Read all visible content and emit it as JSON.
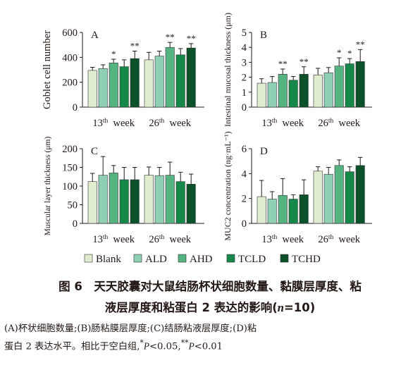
{
  "legend": {
    "items": [
      {
        "label": "Blank",
        "color": "#dfeccd"
      },
      {
        "label": "ALD",
        "color": "#8fcfb3"
      },
      {
        "label": "AHD",
        "color": "#55b37f"
      },
      {
        "label": "TCLD",
        "color": "#16884a"
      },
      {
        "label": "TCHD",
        "color": "#0c5228"
      }
    ]
  },
  "caption": {
    "title_line1": "图 6　天天胶囊对大鼠结肠杯状细胞数量、黏膜层厚度、粘",
    "title_line2_prefix": "液层厚度和粘蛋白 2 表达的影响(",
    "title_line2_n": "n",
    "title_line2_suffix": "=10)",
    "note_line1": "(A)杯状细胞数量;(B)肠粘膜层厚度;(C)结肠粘液层厚度;(D)粘",
    "note_line2_prefix": "蛋白 2 表达水平。相比于空白组,",
    "note_star1": "*",
    "note_p1": "P",
    "note_lt1": "<0.05,",
    "note_star2": "**",
    "note_p2": "P",
    "note_lt2": "<0.01"
  },
  "chart_data": [
    {
      "panel": "A",
      "type": "bar",
      "categories": [
        "13th week",
        "26th week"
      ],
      "ylabel": "Goblet cell number",
      "ylim": [
        0,
        600
      ],
      "yticks": [
        0,
        200,
        400,
        600
      ],
      "series": [
        {
          "name": "Blank",
          "values": [
            295,
            380
          ],
          "errors": [
            25,
            60
          ]
        },
        {
          "name": "ALD",
          "values": [
            310,
            410
          ],
          "errors": [
            30,
            40
          ]
        },
        {
          "name": "AHD",
          "values": [
            355,
            480
          ],
          "errors": [
            30,
            40
          ],
          "marks": [
            "*",
            "**"
          ]
        },
        {
          "name": "TCLD",
          "values": [
            325,
            420
          ],
          "errors": [
            55,
            50
          ]
        },
        {
          "name": "TCHD",
          "values": [
            390,
            475
          ],
          "errors": [
            60,
            35
          ],
          "marks": [
            "**",
            "**"
          ]
        }
      ]
    },
    {
      "panel": "B",
      "type": "bar",
      "categories": [
        "13th week",
        "26th week"
      ],
      "ylabel": "Intestinal mucosal thickness (μm)",
      "ylim": [
        0,
        5
      ],
      "yticks": [
        0,
        1,
        2,
        3,
        4,
        5
      ],
      "series": [
        {
          "name": "Blank",
          "values": [
            1.6,
            2.15
          ],
          "errors": [
            0.3,
            0.45
          ]
        },
        {
          "name": "ALD",
          "values": [
            1.65,
            2.3
          ],
          "errors": [
            0.4,
            0.35
          ]
        },
        {
          "name": "AHD",
          "values": [
            2.2,
            2.75
          ],
          "errors": [
            0.35,
            0.55
          ],
          "marks": [
            "**",
            "*"
          ]
        },
        {
          "name": "TCLD",
          "values": [
            1.8,
            2.9
          ],
          "errors": [
            0.25,
            0.35
          ],
          "marks": [
            "",
            "*"
          ]
        },
        {
          "name": "TCHD",
          "values": [
            2.2,
            3.05
          ],
          "errors": [
            0.5,
            0.8
          ],
          "marks": [
            "**",
            "**"
          ]
        }
      ]
    },
    {
      "panel": "C",
      "type": "bar",
      "categories": [
        "13th week",
        "26th week"
      ],
      "ylabel": "Muscular layer thickness (μm)",
      "ylim": [
        0,
        200
      ],
      "yticks": [
        0,
        50,
        100,
        150,
        200
      ],
      "series": [
        {
          "name": "Blank",
          "values": [
            112,
            129
          ],
          "errors": [
            22,
            22
          ]
        },
        {
          "name": "ALD",
          "values": [
            129,
            128
          ],
          "errors": [
            50,
            22
          ]
        },
        {
          "name": "AHD",
          "values": [
            135,
            129
          ],
          "errors": [
            20,
            35
          ]
        },
        {
          "name": "TCLD",
          "values": [
            117,
            112
          ],
          "errors": [
            33,
            25
          ]
        },
        {
          "name": "TCHD",
          "values": [
            117,
            105
          ],
          "errors": [
            33,
            27
          ]
        }
      ]
    },
    {
      "panel": "D",
      "type": "bar",
      "categories": [
        "13th week",
        "26th week"
      ],
      "ylabel": "MUC2 concentration (ng·mL⁻¹)",
      "ylim": [
        0,
        6
      ],
      "yticks": [
        0,
        2,
        4,
        6
      ],
      "series": [
        {
          "name": "Blank",
          "values": [
            2.15,
            4.2
          ],
          "errors": [
            1.3,
            0.35
          ]
        },
        {
          "name": "ALD",
          "values": [
            1.95,
            3.95
          ],
          "errors": [
            0.6,
            0.55
          ]
        },
        {
          "name": "AHD",
          "values": [
            2.25,
            4.65
          ],
          "errors": [
            1.35,
            0.45
          ]
        },
        {
          "name": "TCLD",
          "values": [
            1.95,
            4.15
          ],
          "errors": [
            0.35,
            0.4
          ]
        },
        {
          "name": "TCHD",
          "values": [
            2.3,
            4.65
          ],
          "errors": [
            1.2,
            0.65
          ]
        }
      ]
    }
  ]
}
